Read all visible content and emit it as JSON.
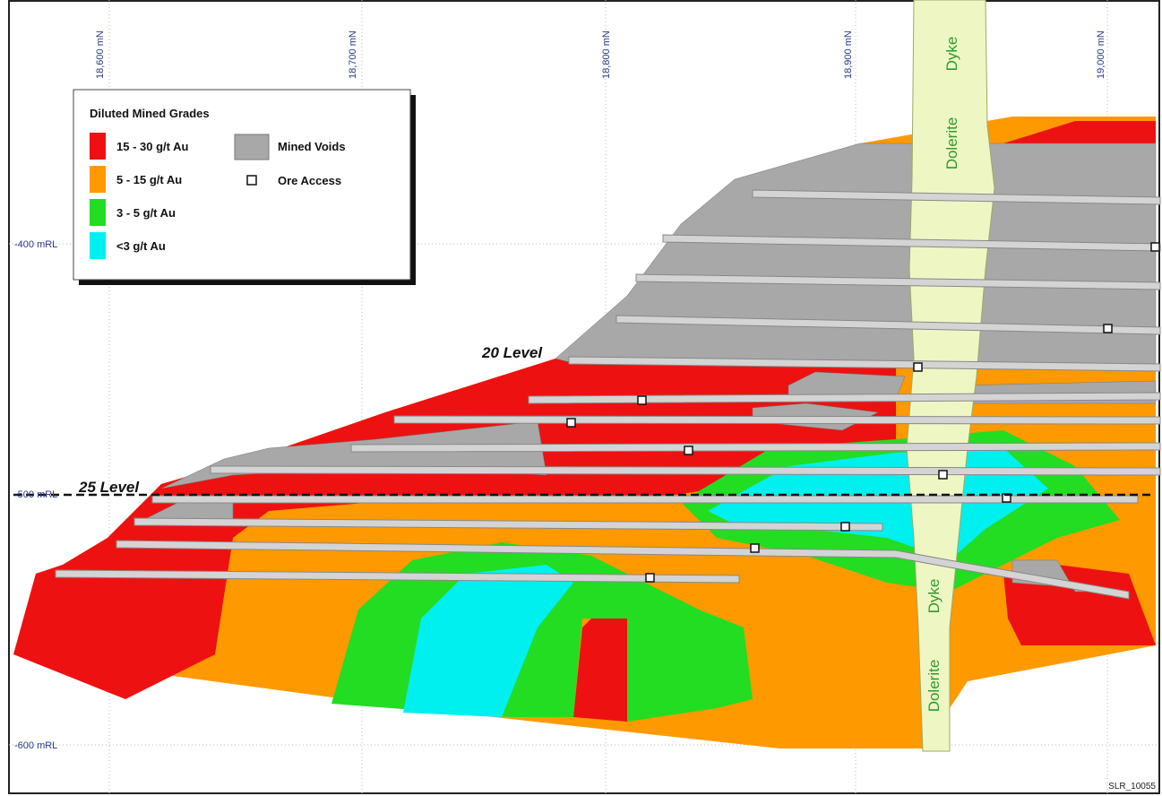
{
  "grid": {
    "eastings": [
      "18,600 mN",
      "18,700 mN",
      "18,800 mN",
      "18,900 mN",
      "19,000 mN"
    ],
    "elevations": [
      "-400 mRL",
      "-500 mRL",
      "-600 mRL"
    ]
  },
  "legend": {
    "title": "Diluted Mined Grades",
    "grades": [
      "15 - 30 g/t Au",
      "5 - 15 g/t Au",
      "3 - 5 g/t Au",
      "<3 g/t Au"
    ],
    "features": [
      "Mined Voids",
      "Ore Access"
    ]
  },
  "levels": [
    "20 Level",
    "25 Level"
  ],
  "dyke_labels": [
    {
      "rock": "Dolerite",
      "name": "Dyke"
    },
    {
      "rock": "Dolerite",
      "name": "Dyke"
    }
  ],
  "figure_id": "SLR_10055"
}
